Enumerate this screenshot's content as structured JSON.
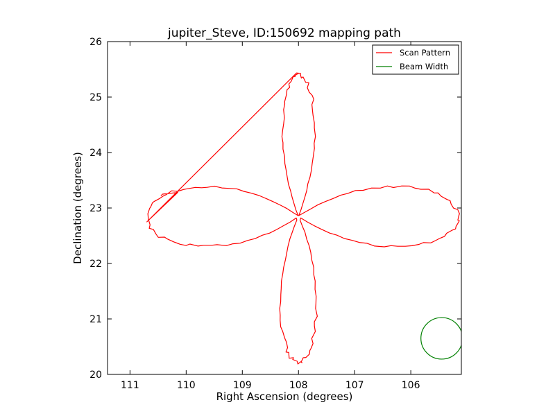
{
  "chart_data": {
    "type": "line",
    "title": "jupiter_Steve, ID:150692 mapping path",
    "xlabel": "Right Ascension (degrees)",
    "ylabel": "Declination (degrees)",
    "xlim": [
      111.4,
      105.1
    ],
    "ylim": [
      20,
      26
    ],
    "x_inverted": true,
    "xticks": [
      111,
      110,
      109,
      108,
      107,
      106
    ],
    "yticks": [
      20,
      21,
      22,
      23,
      24,
      25,
      26
    ],
    "grid": false,
    "legend": {
      "location": "top-right",
      "entries": [
        "Scan Pattern",
        "Beam Width"
      ]
    },
    "series": [
      {
        "name": "Scan Pattern",
        "color": "#ff0000",
        "center": [
          108.0,
          22.85
        ],
        "lobes": [
          {
            "direction": "north",
            "tip": [
              107.95,
              25.42
            ],
            "extent_x": [
              107.6,
              108.4
            ]
          },
          {
            "direction": "west",
            "tip": [
              110.7,
              22.75
            ],
            "extent_y": [
              22.05,
              23.58
            ]
          },
          {
            "direction": "east",
            "tip": [
              105.15,
              22.7
            ],
            "extent_y": [
              22.05,
              23.58
            ]
          },
          {
            "direction": "south",
            "tip": [
              108.0,
              20.22
            ],
            "extent_x": [
              107.55,
              108.45
            ]
          }
        ],
        "end_segment": {
          "from": [
            110.7,
            22.75
          ],
          "to": [
            110.15,
            23.28
          ]
        }
      },
      {
        "name": "Beam Width",
        "color": "#008000",
        "shape": "circle",
        "center": [
          105.45,
          20.65
        ],
        "radius_deg": 0.37
      }
    ]
  }
}
